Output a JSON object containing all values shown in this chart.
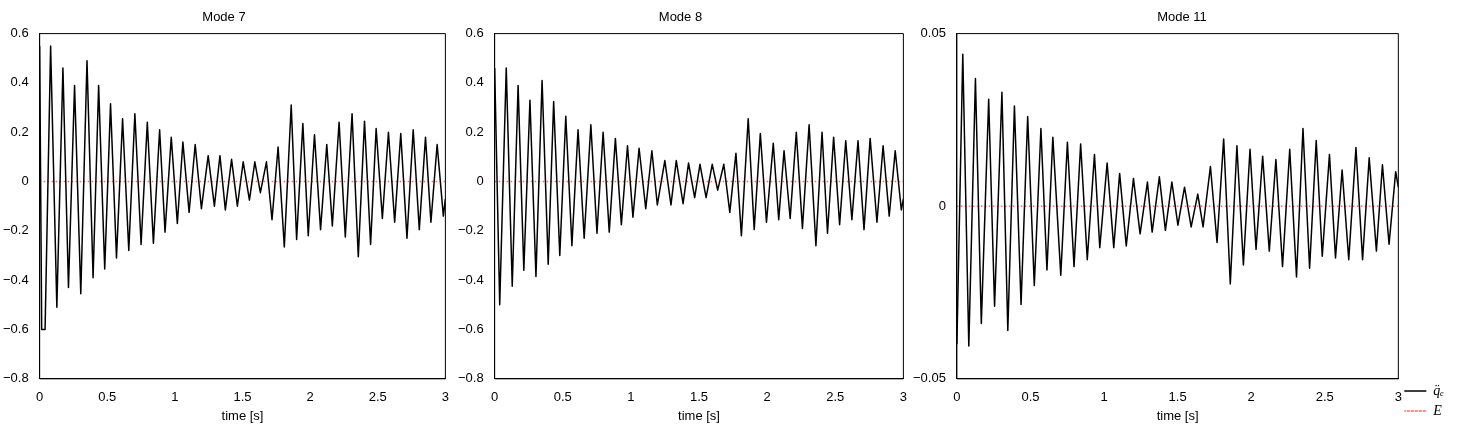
{
  "chart_data": [
    {
      "type": "line",
      "title": "Mode 7",
      "xlabel": "time [s]",
      "xlim": [
        0,
        3
      ],
      "xticks": [
        0,
        0.5,
        1,
        1.5,
        2,
        2.5,
        3
      ],
      "ylim": [
        -0.8,
        0.6
      ],
      "yticks": [
        {
          "value": -0.8,
          "label": "−0.8"
        },
        {
          "value": -0.6,
          "label": "−0.6"
        },
        {
          "value": -0.4,
          "label": "−0.4"
        },
        {
          "value": -0.2,
          "label": "−0.2"
        },
        0,
        0.2,
        0.4,
        0.6
      ],
      "legend": false,
      "series": [
        {
          "color": "#000000",
          "line_style": "solid",
          "x": [
            0,
            0.015,
            0.04,
            0.081,
            0.127,
            0.172,
            0.213,
            0.258,
            0.304,
            0.35,
            0.395,
            0.436,
            0.481,
            0.524,
            0.568,
            0.613,
            0.659,
            0.704,
            0.75,
            0.796,
            0.841,
            0.887,
            0.927,
            0.973,
            1.018,
            1.059,
            1.105,
            1.15,
            1.196,
            1.246,
            1.292,
            1.333,
            1.373,
            1.419,
            1.462,
            1.505,
            1.551,
            1.591,
            1.632,
            1.677,
            1.718,
            1.763,
            1.809,
            1.86,
            1.9,
            1.946,
            1.986,
            2.032,
            2.077,
            2.123,
            2.164,
            2.214,
            2.26,
            2.31,
            2.356,
            2.402,
            2.447,
            2.488,
            2.534,
            2.579,
            2.625,
            2.67,
            2.716,
            2.762,
            2.807,
            2.853,
            2.893,
            2.939,
            2.985,
            3
          ],
          "values": [
            0.55,
            -0.6,
            -0.6,
            0.55,
            -0.51,
            0.46,
            -0.43,
            0.39,
            -0.455,
            0.49,
            -0.39,
            0.39,
            -0.355,
            0.315,
            -0.31,
            0.255,
            -0.28,
            0.275,
            -0.255,
            0.24,
            -0.25,
            0.21,
            -0.205,
            0.18,
            -0.17,
            0.16,
            -0.125,
            0.15,
            -0.11,
            0.105,
            -0.1,
            0.105,
            -0.115,
            0.09,
            -0.1,
            0.08,
            -0.075,
            0.08,
            -0.045,
            0.08,
            -0.155,
            0.14,
            -0.265,
            0.31,
            -0.235,
            0.235,
            -0.22,
            0.19,
            -0.195,
            0.15,
            -0.18,
            0.24,
            -0.225,
            0.275,
            -0.305,
            0.245,
            -0.255,
            0.215,
            -0.15,
            0.2,
            -0.165,
            0.195,
            -0.23,
            0.21,
            -0.195,
            0.18,
            -0.165,
            0.15,
            -0.14,
            -0.07
          ]
        },
        {
          "color": "#ff6666",
          "line_style": "dotted",
          "x": [
            0,
            1.5,
            3
          ],
          "values": [
            0,
            0,
            0
          ]
        }
      ]
    },
    {
      "type": "line",
      "title": "Mode 8",
      "xlabel": "time [s]",
      "xlim": [
        0,
        3
      ],
      "xticks": [
        0,
        0.5,
        1,
        1.5,
        2,
        2.5,
        3
      ],
      "ylim": [
        -0.8,
        0.6
      ],
      "yticks": [
        {
          "value": -0.8,
          "label": "−0.8"
        },
        {
          "value": -0.6,
          "label": "−0.6"
        },
        {
          "value": -0.4,
          "label": "−0.4"
        },
        {
          "value": -0.2,
          "label": "−0.2"
        },
        0,
        0.2,
        0.4,
        0.6
      ],
      "legend": false,
      "series": [
        {
          "color": "#000000",
          "line_style": "solid",
          "x": [
            0,
            0.037,
            0.085,
            0.129,
            0.172,
            0.214,
            0.259,
            0.303,
            0.348,
            0.393,
            0.433,
            0.478,
            0.522,
            0.567,
            0.612,
            0.657,
            0.706,
            0.751,
            0.796,
            0.841,
            0.886,
            0.93,
            0.975,
            1.015,
            1.06,
            1.109,
            1.154,
            1.194,
            1.249,
            1.294,
            1.333,
            1.383,
            1.423,
            1.468,
            1.507,
            1.552,
            1.597,
            1.637,
            1.682,
            1.726,
            1.771,
            1.811,
            1.861,
            1.905,
            1.95,
            1.995,
            2.045,
            2.085,
            2.124,
            2.169,
            2.214,
            2.259,
            2.308,
            2.358,
            2.403,
            2.443,
            2.488,
            2.532,
            2.577,
            2.622,
            2.667,
            2.711,
            2.756,
            2.806,
            2.851,
            2.896,
            2.94,
            2.985,
            3
          ],
          "values": [
            0.46,
            -0.5,
            0.46,
            -0.425,
            0.39,
            -0.36,
            0.33,
            -0.385,
            0.41,
            -0.335,
            0.325,
            -0.3,
            0.265,
            -0.26,
            0.21,
            -0.23,
            0.23,
            -0.21,
            0.2,
            -0.205,
            0.175,
            -0.175,
            0.145,
            -0.145,
            0.135,
            -0.11,
            0.125,
            -0.095,
            0.085,
            -0.095,
            0.085,
            -0.09,
            0.075,
            -0.065,
            0.07,
            -0.065,
            0.07,
            -0.035,
            0.07,
            -0.125,
            0.115,
            -0.22,
            0.255,
            -0.195,
            0.195,
            -0.165,
            0.155,
            -0.155,
            0.125,
            -0.15,
            0.2,
            -0.19,
            0.23,
            -0.26,
            0.2,
            -0.21,
            0.18,
            -0.175,
            0.165,
            -0.155,
            0.165,
            -0.195,
            0.175,
            -0.165,
            0.145,
            -0.14,
            0.125,
            -0.115,
            -0.07
          ]
        },
        {
          "color": "#ff6666",
          "line_style": "dotted",
          "x": [
            0,
            1.5,
            3
          ],
          "values": [
            0,
            0,
            0
          ]
        }
      ]
    },
    {
      "type": "line",
      "title": "Mode 11",
      "xlabel": "time [s]",
      "xlim": [
        0,
        3
      ],
      "xticks": [
        0,
        0.5,
        1,
        1.5,
        2,
        2.5,
        3
      ],
      "ylim": [
        -0.05,
        0.05
      ],
      "yticks": [
        {
          "value": -0.05,
          "label": "−0.05"
        },
        0,
        0.05
      ],
      "legend": "right",
      "series": [
        {
          "name": "q̈ₑ",
          "color": "#000000",
          "line_style": "solid",
          "x": [
            0,
            0.04,
            0.081,
            0.126,
            0.166,
            0.216,
            0.256,
            0.306,
            0.346,
            0.391,
            0.436,
            0.481,
            0.526,
            0.571,
            0.612,
            0.652,
            0.706,
            0.751,
            0.796,
            0.841,
            0.886,
            0.935,
            0.971,
            1.021,
            1.066,
            1.106,
            1.151,
            1.2,
            1.245,
            1.295,
            1.327,
            1.376,
            1.417,
            1.461,
            1.502,
            1.547,
            1.592,
            1.637,
            1.673,
            1.723,
            1.768,
            1.813,
            1.858,
            1.903,
            1.947,
            1.992,
            2.033,
            2.078,
            2.123,
            2.168,
            2.213,
            2.262,
            2.308,
            2.352,
            2.397,
            2.442,
            2.483,
            2.532,
            2.573,
            2.618,
            2.663,
            2.712,
            2.757,
            2.802,
            2.851,
            2.892,
            2.937,
            2.982,
            3
          ],
          "values": [
            -0.04,
            0.044,
            -0.0405,
            0.037,
            -0.034,
            0.031,
            -0.029,
            0.033,
            -0.036,
            0.029,
            -0.0285,
            0.026,
            -0.023,
            0.0225,
            -0.0185,
            0.02,
            -0.02,
            0.0185,
            -0.0175,
            0.018,
            -0.0155,
            0.015,
            -0.012,
            0.0125,
            -0.012,
            0.0095,
            -0.0115,
            0.008,
            -0.008,
            0.007,
            -0.0075,
            0.0085,
            -0.007,
            0.007,
            -0.0055,
            0.0055,
            -0.006,
            0.0035,
            -0.006,
            0.0115,
            -0.0105,
            0.0195,
            -0.0225,
            0.0175,
            -0.017,
            0.0165,
            -0.0125,
            0.0145,
            -0.013,
            0.0135,
            -0.0175,
            0.0165,
            -0.0205,
            0.0225,
            -0.018,
            0.019,
            -0.0145,
            0.015,
            -0.015,
            0.0105,
            -0.0155,
            0.017,
            -0.0155,
            0.014,
            -0.013,
            0.012,
            -0.011,
            0.01,
            0.0055
          ]
        },
        {
          "name": "E",
          "color": "#ff6666",
          "line_style": "dotted",
          "x": [
            0,
            1.5,
            3
          ],
          "values": [
            0,
            0,
            0
          ]
        }
      ]
    }
  ]
}
